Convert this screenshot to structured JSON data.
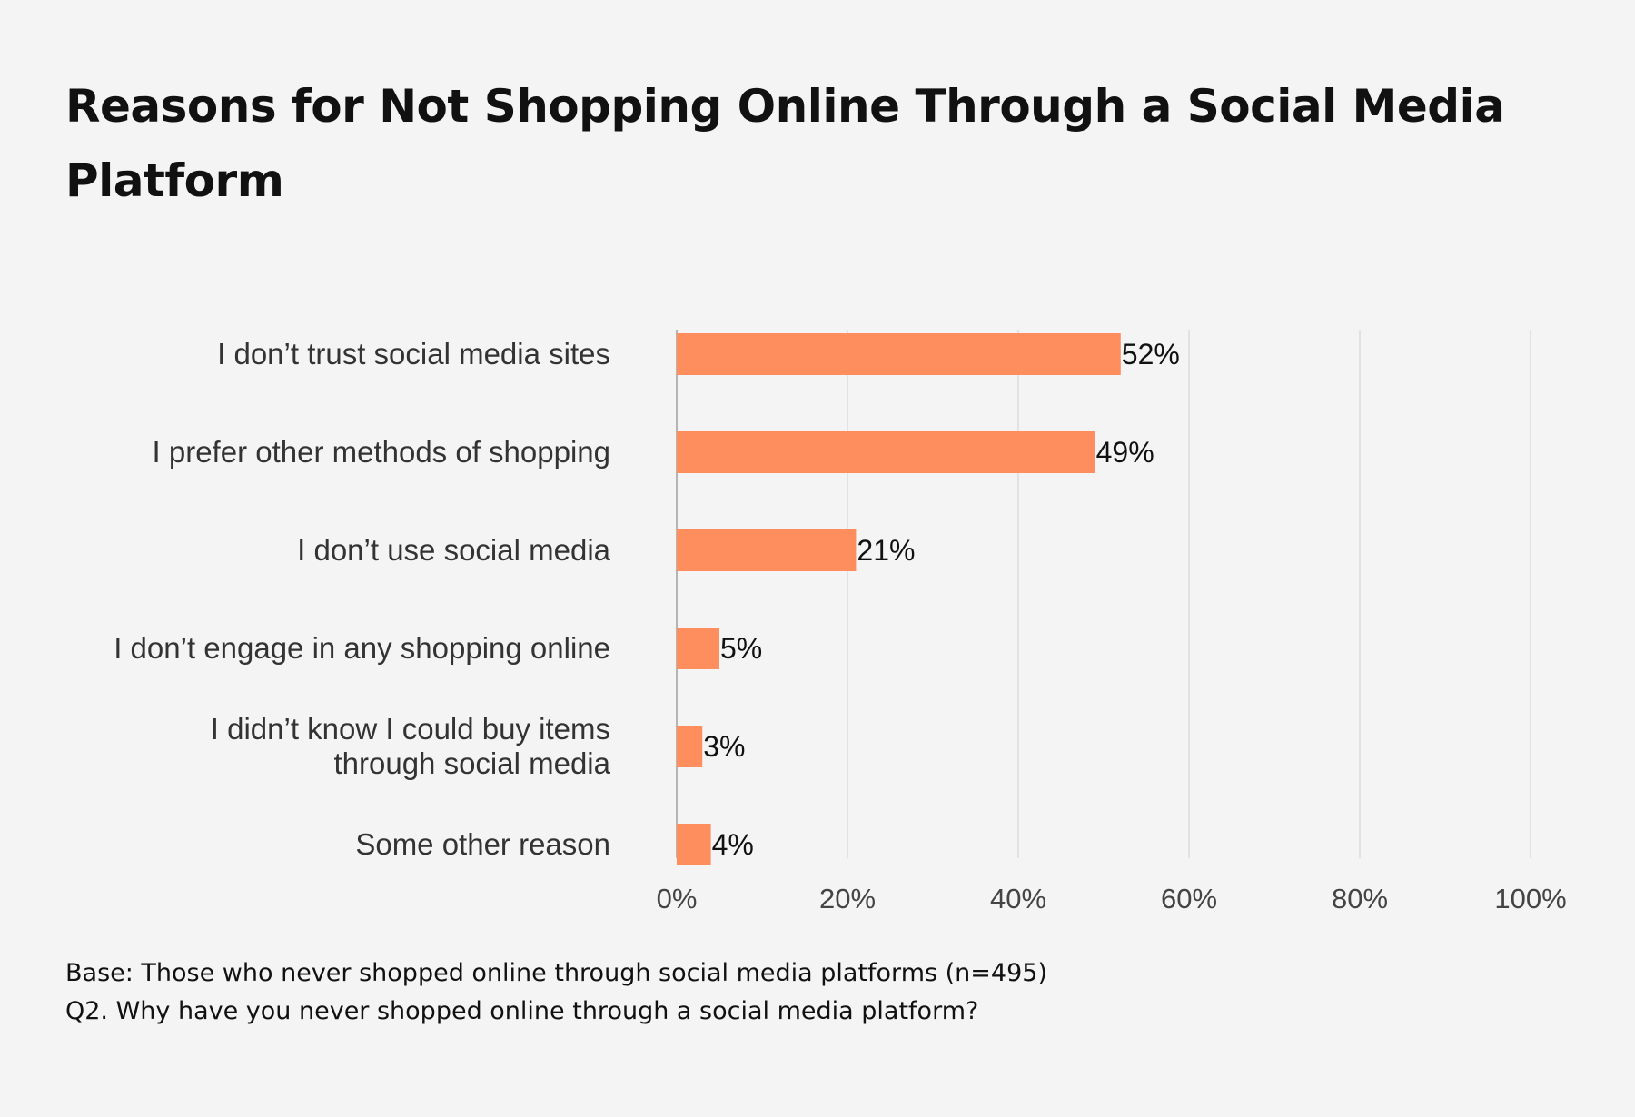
{
  "chart_data": {
    "type": "bar",
    "orientation": "horizontal",
    "title": "Reasons for Not Shopping Online Through a Social Media Platform",
    "categories": [
      [
        "I don’t trust social media sites"
      ],
      [
        "I prefer other methods of shopping"
      ],
      [
        "I don’t use social media"
      ],
      [
        "I don’t engage in any shopping online"
      ],
      [
        "I didn’t know I could buy items",
        "through social media"
      ],
      [
        "Some other reason"
      ]
    ],
    "values": [
      52,
      49,
      21,
      5,
      3,
      4
    ],
    "data_labels": [
      "52%",
      "49%",
      "21%",
      "5%",
      "3%",
      "4%"
    ],
    "xlim": [
      0,
      100
    ],
    "xticks": [
      0,
      20,
      40,
      60,
      80,
      100
    ],
    "xtick_labels": [
      "0%",
      "20%",
      "40%",
      "60%",
      "80%",
      "100%"
    ],
    "xlabel": "",
    "ylabel": "",
    "grid": true,
    "legend": "none",
    "bar_color": "#ff8e5e"
  },
  "footnotes": {
    "base": "Base: Those who never shopped online through social media platforms (n=495)",
    "question": "Q2. Why have you never shopped online through a social media platform?"
  }
}
